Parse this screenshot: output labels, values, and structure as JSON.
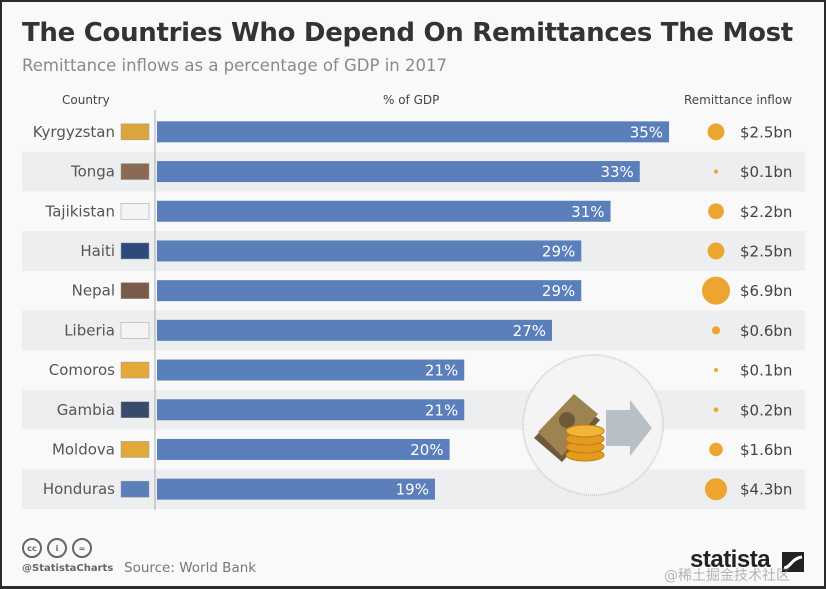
{
  "header": {
    "title": "The Countries Who Depend On Remittances The Most",
    "subtitle": "Remittance inflows as a percentage of GDP in 2017"
  },
  "columns": {
    "country": "Country",
    "gdp": "% of GDP",
    "inflow": "Remittance inflow"
  },
  "colors": {
    "bar": "#5b7fbb",
    "bubble": "#eda530",
    "row_alt": "#eceef0",
    "label": "#555555"
  },
  "chart_data": {
    "type": "bar",
    "title": "The Countries Who Depend On Remittances The Most",
    "subtitle": "Remittance inflows as a percentage of GDP in 2017",
    "xlabel": "% of GDP",
    "ylabel": "Country",
    "orientation": "horizontal",
    "xlim": [
      0,
      35
    ],
    "grid": false,
    "categories": [
      "Kyrgyzstan",
      "Tonga",
      "Tajikistan",
      "Haiti",
      "Nepal",
      "Liberia",
      "Comoros",
      "Gambia",
      "Moldova",
      "Honduras"
    ],
    "series": [
      {
        "name": "% of GDP",
        "values": [
          35,
          33,
          31,
          29,
          29,
          27,
          21,
          21,
          20,
          19
        ],
        "labels": [
          "35%",
          "33%",
          "31%",
          "29%",
          "29%",
          "27%",
          "21%",
          "21%",
          "20%",
          "19%"
        ]
      },
      {
        "name": "Remittance inflow (bn USD)",
        "values": [
          2.5,
          0.1,
          2.2,
          2.5,
          6.9,
          0.6,
          0.1,
          0.2,
          1.6,
          4.3
        ],
        "labels": [
          "$2.5bn",
          "$0.1bn",
          "$2.2bn",
          "$2.5bn",
          "$6.9bn",
          "$0.6bn",
          "$0.1bn",
          "$0.2bn",
          "$1.6bn",
          "$4.3bn"
        ]
      }
    ],
    "flags": [
      "kyrgyzstan-flag-icon",
      "tonga-flag-icon",
      "tajikistan-flag-icon",
      "haiti-flag-icon",
      "nepal-flag-icon",
      "liberia-flag-icon",
      "comoros-flag-icon",
      "gambia-flag-icon",
      "moldova-flag-icon",
      "honduras-flag-icon"
    ]
  },
  "illustration": "money-transfer-icon",
  "footer": {
    "cc_icons": [
      "cc",
      "i",
      "="
    ],
    "handle": "@StatistaCharts",
    "source": "Source: World Bank",
    "logo": "statista",
    "watermark": "@稀土掘金技术社区"
  }
}
